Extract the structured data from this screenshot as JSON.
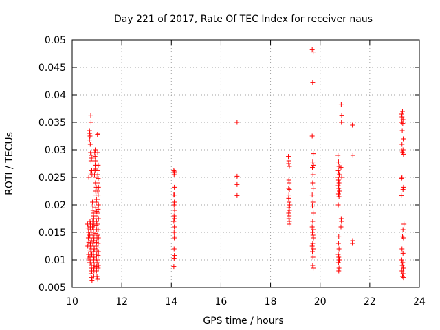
{
  "chart_data": {
    "type": "scatter",
    "title": "Day 221 of 2017, Rate Of TEC Index for receiver naus",
    "xlabel": "GPS time / hours",
    "ylabel": "ROTI / TECUs",
    "xlim": [
      10,
      24
    ],
    "ylim": [
      0.005,
      0.05
    ],
    "grid": true,
    "legend": "none",
    "marker": "plus",
    "color": "#ff0000",
    "xticks": [
      10,
      12,
      14,
      16,
      18,
      20,
      22,
      24
    ],
    "xtick_labels": [
      "10",
      "12",
      "14",
      "16",
      "18",
      "20",
      "22",
      "24"
    ],
    "yticks": [
      0.005,
      0.01,
      0.015,
      0.02,
      0.025,
      0.03,
      0.035,
      0.04,
      0.045,
      0.05
    ],
    "ytick_labels": [
      "0.005",
      "0.01",
      "0.015",
      "0.02",
      "0.025",
      "0.03",
      "0.035",
      "0.04",
      "0.045",
      "0.05"
    ],
    "series": [
      {
        "name": "ROTI",
        "points": [
          [
            10.62,
            0.0165
          ],
          [
            10.64,
            0.0158
          ],
          [
            10.66,
            0.015
          ],
          [
            10.65,
            0.014
          ],
          [
            10.67,
            0.0132
          ],
          [
            10.63,
            0.0125
          ],
          [
            10.68,
            0.0118
          ],
          [
            10.66,
            0.011
          ],
          [
            10.64,
            0.0102
          ],
          [
            10.69,
            0.0095
          ],
          [
            10.67,
            0.025
          ],
          [
            10.7,
            0.0335
          ],
          [
            10.71,
            0.033
          ],
          [
            10.72,
            0.0325
          ],
          [
            10.7,
            0.0318
          ],
          [
            10.73,
            0.031
          ],
          [
            10.75,
            0.0363
          ],
          [
            10.76,
            0.035
          ],
          [
            10.74,
            0.0295
          ],
          [
            10.77,
            0.029
          ],
          [
            10.78,
            0.0285
          ],
          [
            10.76,
            0.028
          ],
          [
            10.75,
            0.0258
          ],
          [
            10.79,
            0.0262
          ],
          [
            10.8,
            0.0255
          ],
          [
            10.72,
            0.017
          ],
          [
            10.74,
            0.0165
          ],
          [
            10.73,
            0.016
          ],
          [
            10.75,
            0.0155
          ],
          [
            10.77,
            0.015
          ],
          [
            10.71,
            0.0145
          ],
          [
            10.76,
            0.014
          ],
          [
            10.78,
            0.0135
          ],
          [
            10.74,
            0.013
          ],
          [
            10.73,
            0.0125
          ],
          [
            10.77,
            0.012
          ],
          [
            10.75,
            0.0115
          ],
          [
            10.79,
            0.011
          ],
          [
            10.72,
            0.0105
          ],
          [
            10.76,
            0.01
          ],
          [
            10.74,
            0.0095
          ],
          [
            10.78,
            0.009
          ],
          [
            10.77,
            0.0085
          ],
          [
            10.79,
            0.008
          ],
          [
            10.76,
            0.0075
          ],
          [
            10.78,
            0.0068
          ],
          [
            10.8,
            0.0063
          ],
          [
            10.82,
            0.0205
          ],
          [
            10.83,
            0.0198
          ],
          [
            10.84,
            0.019
          ],
          [
            10.86,
            0.0185
          ],
          [
            10.85,
            0.018
          ],
          [
            10.87,
            0.0175
          ],
          [
            10.83,
            0.017
          ],
          [
            10.88,
            0.0165
          ],
          [
            10.82,
            0.016
          ],
          [
            10.86,
            0.0155
          ],
          [
            10.85,
            0.015
          ],
          [
            10.84,
            0.0145
          ],
          [
            10.88,
            0.014
          ],
          [
            10.87,
            0.0135
          ],
          [
            10.83,
            0.013
          ],
          [
            10.85,
            0.0125
          ],
          [
            10.89,
            0.012
          ],
          [
            10.86,
            0.0115
          ],
          [
            10.84,
            0.011
          ],
          [
            10.88,
            0.0105
          ],
          [
            10.87,
            0.01
          ],
          [
            10.85,
            0.0095
          ],
          [
            10.89,
            0.009
          ],
          [
            10.86,
            0.0085
          ],
          [
            10.88,
            0.008
          ],
          [
            10.87,
            0.007
          ],
          [
            10.9,
            0.0255
          ],
          [
            10.92,
            0.0262
          ],
          [
            10.91,
            0.0295
          ],
          [
            10.93,
            0.03
          ],
          [
            10.92,
            0.0288
          ],
          [
            10.94,
            0.028
          ],
          [
            10.93,
            0.0272
          ],
          [
            10.95,
            0.0265
          ],
          [
            10.96,
            0.025
          ],
          [
            10.94,
            0.024
          ],
          [
            10.97,
            0.0232
          ],
          [
            10.95,
            0.0225
          ],
          [
            10.96,
            0.0218
          ],
          [
            10.98,
            0.021
          ],
          [
            10.97,
            0.0205
          ],
          [
            10.95,
            0.0195
          ],
          [
            10.99,
            0.0188
          ],
          [
            10.96,
            0.018
          ],
          [
            10.98,
            0.017
          ],
          [
            10.97,
            0.0162
          ],
          [
            10.99,
            0.0155
          ],
          [
            10.96,
            0.0148
          ],
          [
            11.0,
            0.014
          ],
          [
            10.98,
            0.0132
          ],
          [
            10.97,
            0.0125
          ],
          [
            11.0,
            0.0118
          ],
          [
            10.99,
            0.011
          ],
          [
            10.98,
            0.0102
          ],
          [
            11.0,
            0.0095
          ],
          [
            10.99,
            0.0088
          ],
          [
            10.98,
            0.008
          ],
          [
            11.0,
            0.007
          ],
          [
            11.02,
            0.0328
          ],
          [
            11.04,
            0.033
          ],
          [
            11.03,
            0.0295
          ],
          [
            11.05,
            0.0272
          ],
          [
            11.04,
            0.0262
          ],
          [
            11.03,
            0.0255
          ],
          [
            11.05,
            0.0248
          ],
          [
            11.04,
            0.024
          ],
          [
            11.06,
            0.0232
          ],
          [
            11.03,
            0.0225
          ],
          [
            11.05,
            0.0218
          ],
          [
            11.04,
            0.021
          ],
          [
            11.06,
            0.02
          ],
          [
            11.05,
            0.0192
          ],
          [
            11.04,
            0.0185
          ],
          [
            11.06,
            0.0175
          ],
          [
            11.03,
            0.0165
          ],
          [
            11.05,
            0.0155
          ],
          [
            11.04,
            0.0145
          ],
          [
            11.06,
            0.014
          ],
          [
            11.05,
            0.013
          ],
          [
            11.04,
            0.0122
          ],
          [
            11.06,
            0.0115
          ],
          [
            11.05,
            0.0108
          ],
          [
            11.04,
            0.01
          ],
          [
            11.06,
            0.009
          ],
          [
            11.05,
            0.0085
          ],
          [
            11.03,
            0.0065
          ],
          [
            14.1,
            0.0262
          ],
          [
            14.12,
            0.026
          ],
          [
            14.13,
            0.0258
          ],
          [
            14.11,
            0.0255
          ],
          [
            14.12,
            0.0232
          ],
          [
            14.1,
            0.0218
          ],
          [
            14.13,
            0.0218
          ],
          [
            14.12,
            0.0205
          ],
          [
            14.11,
            0.02
          ],
          [
            14.13,
            0.019
          ],
          [
            14.11,
            0.018
          ],
          [
            14.12,
            0.0175
          ],
          [
            14.1,
            0.017
          ],
          [
            14.12,
            0.016
          ],
          [
            14.11,
            0.015
          ],
          [
            14.13,
            0.0143
          ],
          [
            14.12,
            0.014
          ],
          [
            14.11,
            0.012
          ],
          [
            14.12,
            0.0108
          ],
          [
            14.11,
            0.0103
          ],
          [
            14.1,
            0.0088
          ],
          [
            16.65,
            0.035
          ],
          [
            16.65,
            0.0252
          ],
          [
            16.65,
            0.0237
          ],
          [
            16.65,
            0.0217
          ],
          [
            18.72,
            0.0288
          ],
          [
            18.74,
            0.028
          ],
          [
            18.73,
            0.0275
          ],
          [
            18.76,
            0.027
          ],
          [
            18.74,
            0.0245
          ],
          [
            18.75,
            0.024
          ],
          [
            18.73,
            0.023
          ],
          [
            18.76,
            0.0228
          ],
          [
            18.74,
            0.0218
          ],
          [
            18.73,
            0.0212
          ],
          [
            18.75,
            0.0205
          ],
          [
            18.77,
            0.02
          ],
          [
            18.74,
            0.0195
          ],
          [
            18.76,
            0.019
          ],
          [
            18.73,
            0.0185
          ],
          [
            18.75,
            0.018
          ],
          [
            18.74,
            0.0175
          ],
          [
            18.76,
            0.017
          ],
          [
            18.75,
            0.0165
          ],
          [
            19.68,
            0.0483
          ],
          [
            19.72,
            0.0478
          ],
          [
            19.7,
            0.0423
          ],
          [
            19.68,
            0.0325
          ],
          [
            19.72,
            0.0293
          ],
          [
            19.7,
            0.0278
          ],
          [
            19.73,
            0.0272
          ],
          [
            19.69,
            0.0268
          ],
          [
            19.71,
            0.0255
          ],
          [
            19.7,
            0.024
          ],
          [
            19.72,
            0.023
          ],
          [
            19.68,
            0.0218
          ],
          [
            19.71,
            0.0205
          ],
          [
            19.69,
            0.0198
          ],
          [
            19.72,
            0.0185
          ],
          [
            19.7,
            0.017
          ],
          [
            19.68,
            0.016
          ],
          [
            19.72,
            0.0155
          ],
          [
            19.69,
            0.015
          ],
          [
            19.71,
            0.0145
          ],
          [
            19.73,
            0.014
          ],
          [
            19.7,
            0.013
          ],
          [
            19.68,
            0.0125
          ],
          [
            19.72,
            0.012
          ],
          [
            19.69,
            0.0115
          ],
          [
            19.71,
            0.0105
          ],
          [
            19.7,
            0.009
          ],
          [
            19.72,
            0.0085
          ],
          [
            20.72,
            0.029
          ],
          [
            20.74,
            0.0278
          ],
          [
            20.76,
            0.027
          ],
          [
            20.73,
            0.0262
          ],
          [
            20.75,
            0.0258
          ],
          [
            20.77,
            0.0255
          ],
          [
            20.72,
            0.025
          ],
          [
            20.74,
            0.0245
          ],
          [
            20.76,
            0.024
          ],
          [
            20.73,
            0.0235
          ],
          [
            20.75,
            0.023
          ],
          [
            20.77,
            0.0225
          ],
          [
            20.74,
            0.022
          ],
          [
            20.76,
            0.0215
          ],
          [
            20.73,
            0.02
          ],
          [
            20.75,
            0.0143
          ],
          [
            20.74,
            0.013
          ],
          [
            20.76,
            0.012
          ],
          [
            20.73,
            0.011
          ],
          [
            20.75,
            0.0105
          ],
          [
            20.77,
            0.01
          ],
          [
            20.74,
            0.0095
          ],
          [
            20.76,
            0.0085
          ],
          [
            20.75,
            0.008
          ],
          [
            20.85,
            0.0383
          ],
          [
            20.87,
            0.0362
          ],
          [
            20.86,
            0.035
          ],
          [
            20.84,
            0.0268
          ],
          [
            20.87,
            0.025
          ],
          [
            20.85,
            0.0175
          ],
          [
            20.86,
            0.017
          ],
          [
            20.84,
            0.016
          ],
          [
            21.3,
            0.0345
          ],
          [
            21.32,
            0.029
          ],
          [
            21.31,
            0.0135
          ],
          [
            21.3,
            0.013
          ],
          [
            23.28,
            0.0365
          ],
          [
            23.32,
            0.037
          ],
          [
            23.3,
            0.036
          ],
          [
            23.34,
            0.0355
          ],
          [
            23.29,
            0.035
          ],
          [
            23.33,
            0.0348
          ],
          [
            23.31,
            0.0335
          ],
          [
            23.35,
            0.032
          ],
          [
            23.3,
            0.031
          ],
          [
            23.34,
            0.03
          ],
          [
            23.28,
            0.0298
          ],
          [
            23.32,
            0.0295
          ],
          [
            23.36,
            0.0292
          ],
          [
            23.3,
            0.025
          ],
          [
            23.28,
            0.0248
          ],
          [
            23.36,
            0.0232
          ],
          [
            23.34,
            0.0228
          ],
          [
            23.27,
            0.0217
          ],
          [
            23.38,
            0.0165
          ],
          [
            23.34,
            0.0155
          ],
          [
            23.32,
            0.0143
          ],
          [
            23.36,
            0.014
          ],
          [
            23.3,
            0.012
          ],
          [
            23.34,
            0.0112
          ],
          [
            23.29,
            0.01
          ],
          [
            23.33,
            0.0095
          ],
          [
            23.31,
            0.009
          ],
          [
            23.35,
            0.0085
          ],
          [
            23.3,
            0.008
          ],
          [
            23.34,
            0.0075
          ],
          [
            23.32,
            0.007
          ],
          [
            23.36,
            0.0068
          ]
        ]
      }
    ]
  }
}
